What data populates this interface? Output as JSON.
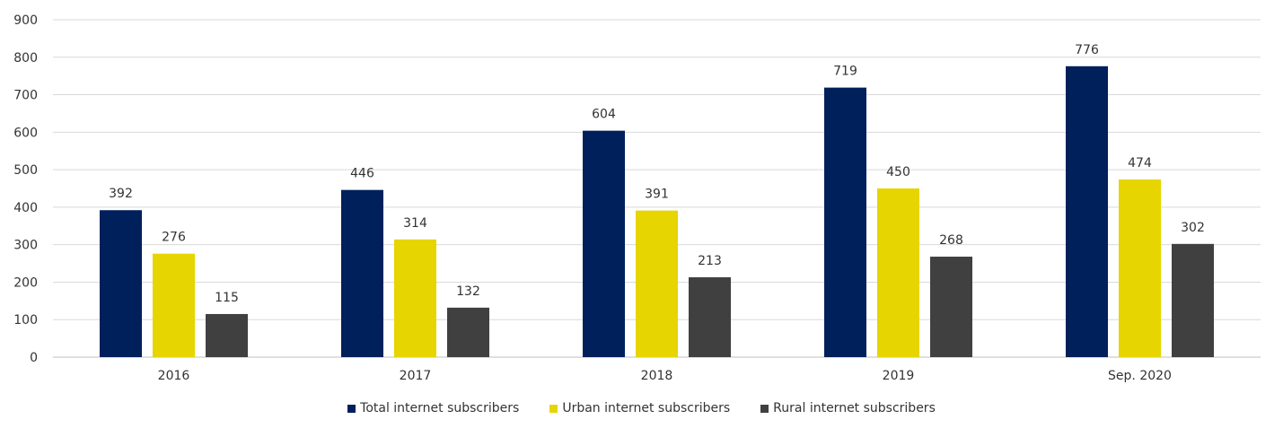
{
  "chart_data": {
    "type": "bar",
    "categories": [
      "2016",
      "2017",
      "2018",
      "2019",
      "Sep. 2020"
    ],
    "series": [
      {
        "name": "Total internet subscribers",
        "values": [
          392,
          446,
          604,
          719,
          776
        ],
        "color": "#00205b"
      },
      {
        "name": "Urban internet subscribers",
        "values": [
          276,
          314,
          391,
          450,
          474
        ],
        "color": "#e6d500"
      },
      {
        "name": "Rural internet subscribers",
        "values": [
          115,
          132,
          213,
          268,
          302
        ],
        "color": "#404040"
      }
    ],
    "yticks": [
      0,
      100,
      200,
      300,
      400,
      500,
      600,
      700,
      800,
      900
    ],
    "ylim": [
      0,
      900
    ],
    "grid": true,
    "legend_position": "bottom"
  }
}
